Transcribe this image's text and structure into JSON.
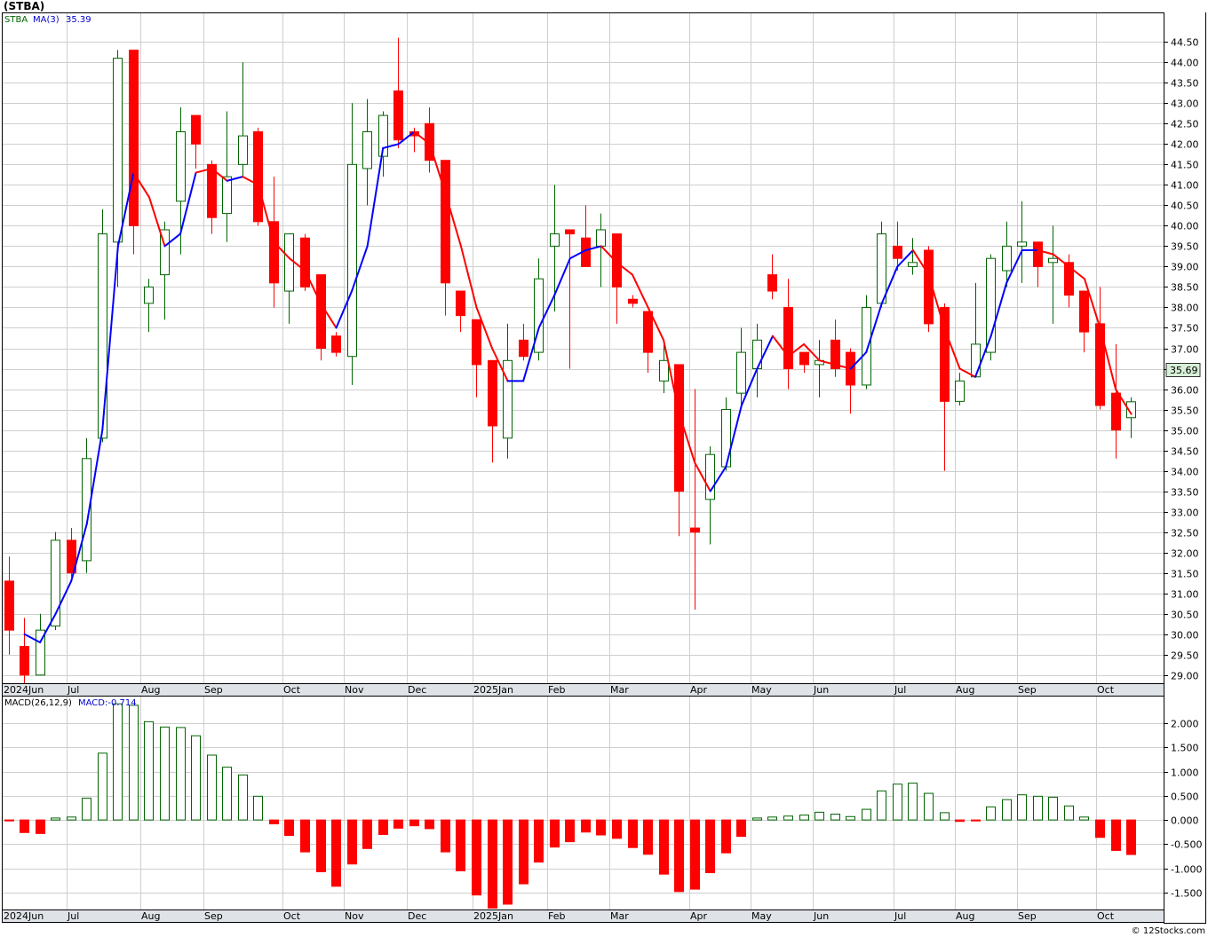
{
  "chart_title": "(STBA)",
  "price_panel": {
    "legend_symbol": "STBA",
    "ma_label": "MA(3)",
    "ma_value": "35.39",
    "last_price": "35.69"
  },
  "macd_panel": {
    "params_label": "MACD(26,12,9)",
    "value_label": "MACD:-0.714"
  },
  "copyright": "© 12Stocks.com",
  "colors": {
    "up": "#006400",
    "down": "#ff0000",
    "ma_up": "#0000ff",
    "ma_down": "#ff0000",
    "grid": "#c8c8c8",
    "last_price_bg": "#d8f0d8"
  },
  "chart_data": [
    {
      "type": "candlestick",
      "title": "(STBA)",
      "x_tick_labels": [
        "2024Jun",
        "Jul",
        "Aug",
        "Sep",
        "Oct",
        "Nov",
        "Dec",
        "2025Jan",
        "Feb",
        "Mar",
        "Apr",
        "May",
        "Jun",
        "Jul",
        "Aug",
        "Sep",
        "Oct"
      ],
      "y_tick_labels": [
        "29.00",
        "29.50",
        "30.00",
        "30.50",
        "31.00",
        "31.50",
        "32.00",
        "32.50",
        "33.00",
        "33.50",
        "34.00",
        "34.50",
        "35.00",
        "35.50",
        "36.00",
        "36.50",
        "37.00",
        "37.50",
        "38.00",
        "38.50",
        "39.00",
        "39.50",
        "40.00",
        "40.50",
        "41.00",
        "41.50",
        "42.00",
        "42.50",
        "43.00",
        "43.50",
        "44.00",
        "44.50"
      ],
      "ylim": [
        28.8,
        45.2
      ],
      "candles": [
        {
          "o": 31.3,
          "h": 31.9,
          "l": 29.5,
          "c": 30.1
        },
        {
          "o": 29.7,
          "h": 30.4,
          "l": 28.8,
          "c": 29.0
        },
        {
          "o": 29.0,
          "h": 30.5,
          "l": 29.0,
          "c": 30.1
        },
        {
          "o": 30.2,
          "h": 32.5,
          "l": 30.1,
          "c": 32.3
        },
        {
          "o": 32.3,
          "h": 32.6,
          "l": 31.4,
          "c": 31.5
        },
        {
          "o": 31.8,
          "h": 34.8,
          "l": 31.5,
          "c": 34.3
        },
        {
          "o": 34.8,
          "h": 40.4,
          "l": 34.7,
          "c": 39.8
        },
        {
          "o": 39.6,
          "h": 44.3,
          "l": 38.5,
          "c": 44.1
        },
        {
          "o": 44.3,
          "h": 44.3,
          "l": 39.3,
          "c": 40.0
        },
        {
          "o": 38.1,
          "h": 38.7,
          "l": 37.4,
          "c": 38.5
        },
        {
          "o": 38.8,
          "h": 40.1,
          "l": 37.7,
          "c": 39.9
        },
        {
          "o": 40.6,
          "h": 42.9,
          "l": 39.3,
          "c": 42.3
        },
        {
          "o": 42.7,
          "h": 42.7,
          "l": 41.4,
          "c": 42.0
        },
        {
          "o": 41.5,
          "h": 41.6,
          "l": 39.8,
          "c": 40.2
        },
        {
          "o": 40.3,
          "h": 42.8,
          "l": 39.6,
          "c": 41.2
        },
        {
          "o": 41.5,
          "h": 44.0,
          "l": 41.2,
          "c": 42.2
        },
        {
          "o": 42.3,
          "h": 42.4,
          "l": 40.0,
          "c": 40.1
        },
        {
          "o": 40.1,
          "h": 41.2,
          "l": 38.0,
          "c": 38.6
        },
        {
          "o": 38.4,
          "h": 39.8,
          "l": 37.6,
          "c": 39.8
        },
        {
          "o": 39.7,
          "h": 39.8,
          "l": 38.4,
          "c": 38.5
        },
        {
          "o": 38.8,
          "h": 38.8,
          "l": 36.7,
          "c": 37.0
        },
        {
          "o": 37.3,
          "h": 37.4,
          "l": 36.8,
          "c": 36.9
        },
        {
          "o": 36.8,
          "h": 43.0,
          "l": 36.1,
          "c": 41.5
        },
        {
          "o": 41.4,
          "h": 43.1,
          "l": 40.5,
          "c": 42.3
        },
        {
          "o": 41.7,
          "h": 42.8,
          "l": 41.2,
          "c": 42.7
        },
        {
          "o": 43.3,
          "h": 44.6,
          "l": 41.9,
          "c": 42.1
        },
        {
          "o": 42.3,
          "h": 42.4,
          "l": 41.8,
          "c": 42.2
        },
        {
          "o": 42.5,
          "h": 42.9,
          "l": 41.3,
          "c": 41.6
        },
        {
          "o": 41.6,
          "h": 41.6,
          "l": 37.8,
          "c": 38.6
        },
        {
          "o": 38.4,
          "h": 38.4,
          "l": 37.4,
          "c": 37.8
        },
        {
          "o": 37.7,
          "h": 37.7,
          "l": 35.8,
          "c": 36.6
        },
        {
          "o": 36.7,
          "h": 36.7,
          "l": 34.2,
          "c": 35.1
        },
        {
          "o": 34.8,
          "h": 37.6,
          "l": 34.3,
          "c": 36.7
        },
        {
          "o": 37.2,
          "h": 37.6,
          "l": 36.7,
          "c": 36.8
        },
        {
          "o": 36.9,
          "h": 39.2,
          "l": 36.7,
          "c": 38.7
        },
        {
          "o": 39.5,
          "h": 41.0,
          "l": 37.9,
          "c": 39.8
        },
        {
          "o": 39.9,
          "h": 39.9,
          "l": 36.5,
          "c": 39.8
        },
        {
          "o": 39.7,
          "h": 40.5,
          "l": 39.0,
          "c": 39.0
        },
        {
          "o": 39.5,
          "h": 40.3,
          "l": 38.5,
          "c": 39.9
        },
        {
          "o": 39.8,
          "h": 39.8,
          "l": 37.6,
          "c": 38.5
        },
        {
          "o": 38.2,
          "h": 38.3,
          "l": 38.0,
          "c": 38.1
        },
        {
          "o": 37.9,
          "h": 37.9,
          "l": 36.4,
          "c": 36.9
        },
        {
          "o": 36.2,
          "h": 37.1,
          "l": 35.9,
          "c": 36.7
        },
        {
          "o": 36.6,
          "h": 36.6,
          "l": 32.4,
          "c": 33.5
        },
        {
          "o": 32.6,
          "h": 36.0,
          "l": 30.6,
          "c": 32.5
        },
        {
          "o": 33.3,
          "h": 34.6,
          "l": 32.2,
          "c": 34.4
        },
        {
          "o": 34.1,
          "h": 35.8,
          "l": 34.0,
          "c": 35.5
        },
        {
          "o": 35.9,
          "h": 37.5,
          "l": 35.6,
          "c": 36.9
        },
        {
          "o": 36.5,
          "h": 37.6,
          "l": 35.8,
          "c": 37.2
        },
        {
          "o": 38.8,
          "h": 39.3,
          "l": 38.2,
          "c": 38.4
        },
        {
          "o": 38.0,
          "h": 38.7,
          "l": 36.0,
          "c": 36.5
        },
        {
          "o": 36.9,
          "h": 36.9,
          "l": 36.4,
          "c": 36.6
        },
        {
          "o": 36.6,
          "h": 37.2,
          "l": 35.8,
          "c": 36.7
        },
        {
          "o": 37.2,
          "h": 37.7,
          "l": 36.3,
          "c": 36.5
        },
        {
          "o": 36.9,
          "h": 37.0,
          "l": 35.4,
          "c": 36.1
        },
        {
          "o": 36.1,
          "h": 38.3,
          "l": 36.0,
          "c": 38.0
        },
        {
          "o": 38.1,
          "h": 40.1,
          "l": 38.0,
          "c": 39.8
        },
        {
          "o": 39.5,
          "h": 40.1,
          "l": 38.9,
          "c": 39.2
        },
        {
          "o": 39.0,
          "h": 39.7,
          "l": 38.8,
          "c": 39.1
        },
        {
          "o": 39.4,
          "h": 39.5,
          "l": 37.4,
          "c": 37.6
        },
        {
          "o": 38.0,
          "h": 38.1,
          "l": 34.0,
          "c": 35.7
        },
        {
          "o": 35.7,
          "h": 36.4,
          "l": 35.6,
          "c": 36.2
        },
        {
          "o": 36.3,
          "h": 38.6,
          "l": 36.3,
          "c": 37.1
        },
        {
          "o": 36.9,
          "h": 39.3,
          "l": 36.7,
          "c": 39.2
        },
        {
          "o": 38.9,
          "h": 40.1,
          "l": 38.5,
          "c": 39.5
        },
        {
          "o": 39.5,
          "h": 40.6,
          "l": 38.6,
          "c": 39.6
        },
        {
          "o": 39.6,
          "h": 39.6,
          "l": 38.5,
          "c": 39.0
        },
        {
          "o": 39.1,
          "h": 40.0,
          "l": 37.6,
          "c": 39.2
        },
        {
          "o": 39.1,
          "h": 39.3,
          "l": 38.0,
          "c": 38.3
        },
        {
          "o": 38.4,
          "h": 38.4,
          "l": 36.9,
          "c": 37.4
        },
        {
          "o": 37.6,
          "h": 38.5,
          "l": 35.5,
          "c": 35.6
        },
        {
          "o": 35.9,
          "h": 37.1,
          "l": 34.3,
          "c": 35.0
        },
        {
          "o": 35.3,
          "h": 35.8,
          "l": 34.8,
          "c": 35.69
        }
      ],
      "ma3": [
        null,
        30.0,
        29.8,
        30.5,
        31.3,
        32.7,
        35.0,
        39.5,
        41.3,
        40.7,
        39.5,
        39.8,
        41.3,
        41.4,
        41.1,
        41.2,
        41.0,
        39.6,
        39.2,
        38.9,
        38.1,
        37.5,
        38.4,
        39.5,
        41.9,
        42.0,
        42.3,
        42.0,
        40.8,
        39.5,
        38.0,
        37.0,
        36.2,
        36.2,
        37.5,
        38.3,
        39.2,
        39.4,
        39.5,
        39.1,
        38.8,
        38.0,
        37.2,
        35.4,
        34.2,
        33.5,
        34.1,
        35.6,
        36.5,
        37.3,
        36.8,
        37.1,
        36.7,
        36.6,
        36.5,
        36.9,
        38.1,
        39.0,
        39.4,
        38.8,
        37.5,
        36.5,
        36.3,
        37.3,
        38.6,
        39.4,
        39.4,
        39.3,
        39.0,
        38.7,
        37.5,
        36.0,
        35.39
      ],
      "ma_colors": [
        "red",
        "red",
        "blue",
        "blue",
        "blue",
        "blue",
        "blue",
        "blue",
        "blue",
        "red",
        "red",
        "blue",
        "blue",
        "red",
        "red",
        "blue",
        "red",
        "red",
        "red",
        "red",
        "red",
        "red",
        "blue",
        "blue",
        "blue",
        "blue",
        "blue",
        "red",
        "red",
        "red",
        "red",
        "red",
        "red",
        "blue",
        "blue",
        "blue",
        "blue",
        "blue",
        "blue",
        "red",
        "red",
        "red",
        "red",
        "red",
        "red",
        "red",
        "blue",
        "blue",
        "blue",
        "blue",
        "red",
        "red",
        "red",
        "red",
        "red",
        "blue",
        "blue",
        "blue",
        "blue",
        "red",
        "red",
        "red",
        "red",
        "blue",
        "blue",
        "blue",
        "blue",
        "red",
        "red",
        "red",
        "red",
        "red",
        "red"
      ]
    },
    {
      "type": "bar",
      "title": "MACD(26,12,9)",
      "y_tick_labels": [
        "-1.500",
        "-1.000",
        "-0.500",
        "0.000",
        "0.500",
        "1.000",
        "1.500",
        "2.000"
      ],
      "ylim": [
        -1.85,
        2.55
      ],
      "values": [
        -0.02,
        -0.26,
        -0.28,
        0.04,
        0.06,
        0.45,
        1.38,
        2.4,
        2.37,
        2.03,
        1.92,
        1.91,
        1.74,
        1.34,
        1.09,
        0.93,
        0.49,
        -0.08,
        -0.32,
        -0.66,
        -1.07,
        -1.37,
        -0.91,
        -0.59,
        -0.3,
        -0.17,
        -0.12,
        -0.18,
        -0.66,
        -1.05,
        -1.55,
        -1.82,
        -1.74,
        -1.32,
        -0.87,
        -0.56,
        -0.45,
        -0.25,
        -0.31,
        -0.38,
        -0.57,
        -0.71,
        -1.12,
        -1.48,
        -1.43,
        -1.09,
        -0.68,
        -0.34,
        0.04,
        0.06,
        0.08,
        0.1,
        0.16,
        0.12,
        0.07,
        0.22,
        0.6,
        0.74,
        0.76,
        0.55,
        0.15,
        -0.03,
        -0.02,
        0.27,
        0.42,
        0.52,
        0.49,
        0.47,
        0.29,
        0.06,
        -0.36,
        -0.63,
        -0.714
      ],
      "up_color": "#006400",
      "down_color": "#ff0000"
    }
  ]
}
